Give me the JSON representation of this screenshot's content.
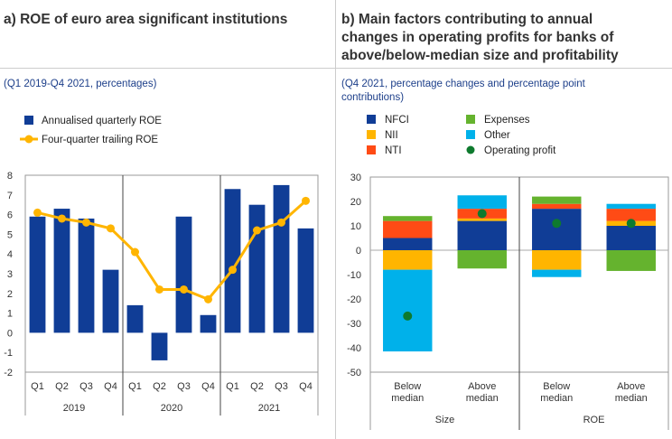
{
  "panel_a": {
    "title": "a) ROE of euro area significant institutions",
    "subtitle": "(Q1 2019-Q4 2021, percentages)"
  },
  "panel_b": {
    "title_lines": [
      "b) Main factors contributing to annual",
      "changes in operating profits for banks of",
      "above/below-median size and profitability"
    ],
    "subtitle_lines": [
      "(Q4 2021, percentage changes and percentage point",
      "contributions)"
    ]
  },
  "colors": {
    "bar_blue": "#103D96",
    "line_yellow": "#FFB500",
    "nfci": "#103D96",
    "nii": "#FFB500",
    "nti": "#FF4B15",
    "expenses": "#65B32E",
    "other": "#00B1EA",
    "op_profit": "#0E7A2E"
  },
  "chart_data": [
    {
      "type": "bar",
      "title": "a) ROE of euro area significant institutions",
      "categories": [
        "Q1",
        "Q2",
        "Q3",
        "Q4",
        "Q1",
        "Q2",
        "Q3",
        "Q4",
        "Q1",
        "Q2",
        "Q3",
        "Q4"
      ],
      "groups": [
        "2019",
        "2020",
        "2021"
      ],
      "ylim": [
        -2,
        8
      ],
      "yticks": [
        "8",
        "7",
        "6",
        "5",
        "4",
        "3",
        "2",
        "1",
        "0",
        "-1",
        "-2"
      ],
      "series": [
        {
          "name": "Annualised quarterly ROE",
          "kind": "bar",
          "values": [
            5.9,
            6.3,
            5.8,
            3.2,
            1.4,
            -1.4,
            5.9,
            0.9,
            7.3,
            6.5,
            7.5,
            5.3
          ]
        },
        {
          "name": "Four-quarter trailing ROE",
          "kind": "line",
          "values": [
            6.1,
            5.8,
            5.6,
            5.3,
            4.1,
            2.2,
            2.2,
            1.7,
            3.2,
            5.2,
            5.6,
            6.7
          ]
        }
      ]
    },
    {
      "type": "stacked-bar",
      "title": "b) Main factors contributing to annual changes in operating profits for banks of above/below-median size and profitability",
      "categories": [
        [
          "Below",
          "median"
        ],
        [
          "Above",
          "median"
        ],
        [
          "Below",
          "median"
        ],
        [
          "Above",
          "median"
        ]
      ],
      "groups": [
        "Size",
        "ROE"
      ],
      "ylim": [
        -50,
        30
      ],
      "yticks": [
        "30",
        "20",
        "10",
        "0",
        "-10",
        "-20",
        "-30",
        "-40",
        "-50"
      ],
      "legend": [
        {
          "name": "NFCI",
          "key": "nfci"
        },
        {
          "name": "Expenses",
          "key": "expenses"
        },
        {
          "name": "NII",
          "key": "nii"
        },
        {
          "name": "Other",
          "key": "other"
        },
        {
          "name": "NTI",
          "key": "nti"
        },
        {
          "name": "Operating profit",
          "key": "op_profit",
          "marker": "dot"
        }
      ],
      "series": [
        {
          "name": "NFCI",
          "key": "nfci",
          "values": [
            5,
            12,
            17,
            10
          ]
        },
        {
          "name": "NII",
          "key": "nii",
          "values": [
            -8,
            1,
            -8,
            2
          ]
        },
        {
          "name": "NTI",
          "key": "nti",
          "values": [
            7,
            4,
            2,
            5
          ]
        },
        {
          "name": "Expenses",
          "key": "expenses",
          "values": [
            2,
            -7.5,
            3,
            -8.5
          ]
        },
        {
          "name": "Other",
          "key": "other",
          "values": [
            -33.5,
            5.5,
            -3,
            2
          ]
        },
        {
          "name": "Operating profit",
          "key": "op_profit",
          "kind": "dot",
          "values": [
            -27,
            15,
            11,
            11
          ]
        }
      ]
    }
  ]
}
